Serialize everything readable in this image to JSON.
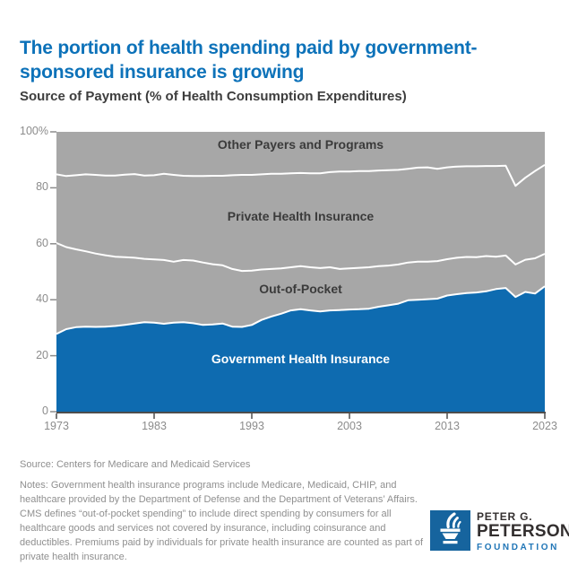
{
  "header": {
    "title": "The portion of health spending paid by government-sponsored insurance is growing",
    "subtitle": "Source of Payment (% of Health Consumption Expenditures)"
  },
  "chart_data": {
    "type": "area",
    "stacked": true,
    "title": "Source of Payment (% of Health Consumption Expenditures)",
    "xlabel": "",
    "ylabel": "% of Health Consumption Expenditures",
    "ylim": [
      0,
      100
    ],
    "grid": false,
    "legend": "labels-inside-areas",
    "area_color": "#a7a7a7",
    "boundary_line_color": "#ffffff",
    "x": [
      1973,
      1974,
      1975,
      1976,
      1977,
      1978,
      1979,
      1980,
      1981,
      1982,
      1983,
      1984,
      1985,
      1986,
      1987,
      1988,
      1989,
      1990,
      1991,
      1992,
      1993,
      1994,
      1995,
      1996,
      1997,
      1998,
      1999,
      2000,
      2001,
      2002,
      2003,
      2004,
      2005,
      2006,
      2007,
      2008,
      2009,
      2010,
      2011,
      2012,
      2013,
      2014,
      2015,
      2016,
      2017,
      2018,
      2019,
      2020,
      2021,
      2022,
      2023
    ],
    "x_tick_labels": [
      "1973",
      "1983",
      "1993",
      "2003",
      "2013",
      "2023"
    ],
    "y_tick_labels": [
      "100%",
      "80",
      "60",
      "40",
      "20",
      "0"
    ],
    "series": [
      {
        "name": "Government Health Insurance",
        "color": "#0e6bb0",
        "values": [
          27.8,
          29.5,
          30.2,
          30.4,
          30.3,
          30.4,
          30.6,
          31.0,
          31.5,
          32.0,
          31.8,
          31.4,
          31.8,
          32.0,
          31.6,
          31.0,
          31.2,
          31.5,
          30.4,
          30.3,
          31.0,
          32.8,
          34.0,
          35.0,
          36.2,
          36.6,
          36.2,
          35.8,
          36.2,
          36.3,
          36.5,
          36.6,
          36.8,
          37.5,
          38.0,
          38.6,
          39.8,
          40.0,
          40.2,
          40.4,
          41.5,
          42.0,
          42.4,
          42.6,
          43.0,
          43.8,
          44.2,
          41.0,
          42.8,
          42.2,
          44.8
        ]
      },
      {
        "name": "Out-of-Pocket",
        "color": "#a7a7a7",
        "values": [
          32.5,
          29.3,
          27.8,
          26.9,
          26.2,
          25.5,
          24.8,
          24.2,
          23.5,
          22.6,
          22.6,
          22.8,
          21.8,
          22.2,
          22.4,
          22.3,
          21.5,
          20.8,
          20.6,
          20.0,
          19.4,
          18.0,
          17.0,
          16.2,
          15.4,
          15.4,
          15.4,
          15.5,
          15.4,
          14.7,
          14.7,
          14.8,
          14.8,
          14.5,
          14.2,
          14.0,
          13.5,
          13.6,
          13.4,
          13.4,
          13.0,
          13.0,
          12.9,
          12.6,
          12.6,
          11.6,
          11.6,
          11.6,
          11.5,
          12.6,
          11.6
        ]
      },
      {
        "name": "Private Health Insurance",
        "color": "#a7a7a7",
        "values": [
          24.5,
          25.4,
          26.5,
          27.5,
          28.1,
          28.5,
          29.0,
          29.5,
          29.9,
          29.8,
          30.1,
          30.8,
          31.0,
          30.1,
          30.2,
          30.9,
          31.6,
          32.0,
          33.5,
          34.3,
          34.2,
          34.0,
          34.0,
          33.8,
          33.6,
          33.3,
          33.6,
          33.9,
          34.0,
          34.8,
          34.6,
          34.6,
          34.4,
          34.2,
          34.1,
          33.8,
          33.5,
          33.6,
          33.7,
          33.0,
          32.8,
          32.6,
          32.4,
          32.5,
          32.2,
          32.4,
          32.1,
          28.1,
          29.3,
          31.2,
          31.8
        ]
      },
      {
        "name": "Other Payers and Programs",
        "color": "#a7a7a7",
        "values": [
          15.2,
          15.8,
          15.5,
          15.2,
          15.4,
          15.6,
          15.6,
          15.3,
          15.1,
          15.6,
          15.5,
          15.0,
          15.4,
          15.7,
          15.8,
          15.8,
          15.7,
          15.7,
          15.5,
          15.4,
          15.4,
          15.2,
          15.0,
          15.0,
          14.8,
          14.7,
          14.8,
          14.8,
          14.4,
          14.2,
          14.2,
          14.0,
          14.0,
          13.8,
          13.7,
          13.6,
          13.2,
          12.8,
          12.7,
          13.2,
          12.7,
          12.4,
          12.3,
          12.3,
          12.2,
          12.2,
          12.1,
          19.3,
          16.4,
          14.0,
          11.8
        ]
      }
    ]
  },
  "footer": {
    "source": "Source: Centers for Medicare and Medicaid Services",
    "notes": "Notes: Government health insurance programs include Medicare, Medicaid, CHIP, and healthcare provided by the Department of Defense and the Department of Veterans’ Affairs. CMS defines “out-of-pocket spending” to include direct spending by consumers for all healthcare goods and services not covered by insurance, including coinsurance and deductibles. Premiums paid by individuals for private health insurance are counted as part of private health insurance.",
    "logo": {
      "line1": "PETER G.",
      "line2": "PETERSON",
      "line3": "FOUNDATION"
    }
  },
  "colors": {
    "title_blue": "#0d72b9",
    "government_area_blue": "#0e6bb0",
    "gray_area": "#a7a7a7",
    "axis_dark": "#4d4d4d",
    "tick_label_gray": "#8c8c8c",
    "footnote_gray": "#8f8f8f",
    "logo_blue": "#16649e"
  }
}
